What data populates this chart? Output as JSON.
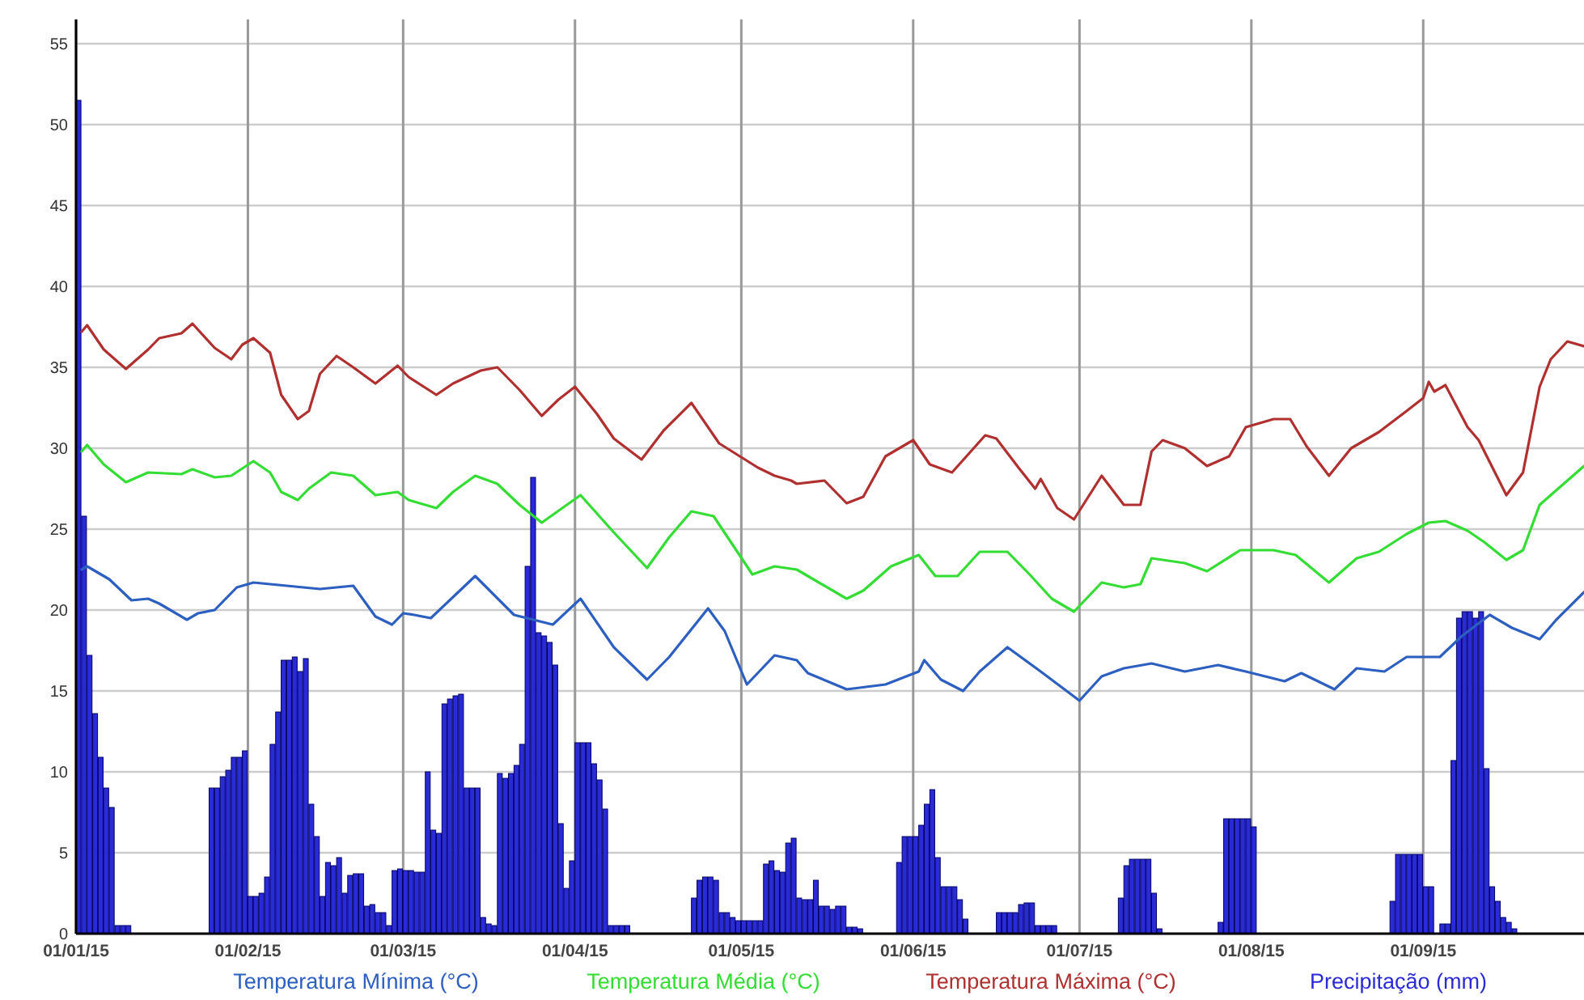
{
  "chart_data": {
    "type": "line",
    "xlim": [
      "2015-01-01",
      "2015-09-30"
    ],
    "xticks": [
      {
        "value": "2015-01-01",
        "label": "01/01/15"
      },
      {
        "value": "2015-02-01",
        "label": "01/02/15"
      },
      {
        "value": "2015-03-01",
        "label": "01/03/15"
      },
      {
        "value": "2015-04-01",
        "label": "01/04/15"
      },
      {
        "value": "2015-05-01",
        "label": "01/05/15"
      },
      {
        "value": "2015-06-01",
        "label": "01/06/15"
      },
      {
        "value": "2015-07-01",
        "label": "01/07/15"
      },
      {
        "value": "2015-08-01",
        "label": "01/08/15"
      },
      {
        "value": "2015-09-01",
        "label": "01/09/15"
      }
    ],
    "ylim": [
      0,
      56.5
    ],
    "yticks": [
      0,
      5,
      10,
      15,
      20,
      25,
      30,
      35,
      40,
      45,
      50,
      55
    ],
    "grid": true,
    "legend": "bottom",
    "marker": "none",
    "line_style": "solid",
    "series": [
      {
        "name": "Temperatura Mínima (°C)",
        "color": "#2c5fbf",
        "x": [
          "2015-01-02",
          "2015-01-03",
          "2015-01-07",
          "2015-01-11",
          "2015-01-14",
          "2015-01-16",
          "2015-01-21",
          "2015-01-23",
          "2015-01-26",
          "2015-01-30",
          "2015-02-02",
          "2015-02-08",
          "2015-02-14",
          "2015-02-20",
          "2015-02-24",
          "2015-02-27",
          "2015-03-01",
          "2015-03-03",
          "2015-03-06",
          "2015-03-14",
          "2015-03-21",
          "2015-03-28",
          "2015-04-02",
          "2015-04-08",
          "2015-04-14",
          "2015-04-18",
          "2015-04-25",
          "2015-04-28",
          "2015-05-02",
          "2015-05-07",
          "2015-05-11",
          "2015-05-13",
          "2015-05-20",
          "2015-05-27",
          "2015-06-02",
          "2015-06-03",
          "2015-06-06",
          "2015-06-10",
          "2015-06-13",
          "2015-06-18",
          "2015-06-24",
          "2015-07-01",
          "2015-07-05",
          "2015-07-09",
          "2015-07-14",
          "2015-07-20",
          "2015-07-26",
          "2015-07-31",
          "2015-08-07",
          "2015-08-10",
          "2015-08-16",
          "2015-08-20",
          "2015-08-25",
          "2015-08-29",
          "2015-09-04",
          "2015-09-08",
          "2015-09-13",
          "2015-09-17",
          "2015-09-22",
          "2015-09-25",
          "2015-09-30"
        ],
        "values": [
          22.5,
          22.7,
          21.9,
          20.6,
          20.7,
          20.4,
          19.4,
          19.8,
          20.0,
          21.4,
          21.7,
          21.5,
          21.3,
          21.5,
          19.6,
          19.1,
          19.8,
          19.7,
          19.5,
          22.1,
          19.7,
          19.1,
          20.7,
          17.7,
          15.7,
          17.1,
          20.1,
          18.7,
          15.4,
          17.2,
          16.9,
          16.1,
          15.1,
          15.4,
          16.2,
          16.9,
          15.7,
          15.0,
          16.2,
          17.7,
          16.2,
          14.4,
          15.9,
          16.4,
          16.7,
          16.2,
          16.6,
          16.2,
          15.6,
          16.1,
          15.1,
          16.4,
          16.2,
          17.1,
          17.1,
          18.4,
          19.7,
          18.9,
          18.2,
          19.4,
          21.1
        ]
      },
      {
        "name": "Temperatura Média (°C)",
        "color": "#33dd33",
        "x": [
          "2015-01-02",
          "2015-01-03",
          "2015-01-06",
          "2015-01-10",
          "2015-01-14",
          "2015-01-20",
          "2015-01-22",
          "2015-01-26",
          "2015-01-29",
          "2015-02-02",
          "2015-02-05",
          "2015-02-07",
          "2015-02-10",
          "2015-02-12",
          "2015-02-16",
          "2015-02-20",
          "2015-02-24",
          "2015-02-28",
          "2015-03-02",
          "2015-03-07",
          "2015-03-10",
          "2015-03-14",
          "2015-03-18",
          "2015-03-22",
          "2015-03-26",
          "2015-04-02",
          "2015-04-08",
          "2015-04-14",
          "2015-04-18",
          "2015-04-22",
          "2015-04-26",
          "2015-05-03",
          "2015-05-07",
          "2015-05-11",
          "2015-05-13",
          "2015-05-20",
          "2015-05-23",
          "2015-05-28",
          "2015-06-02",
          "2015-06-05",
          "2015-06-09",
          "2015-06-13",
          "2015-06-18",
          "2015-06-22",
          "2015-06-26",
          "2015-06-30",
          "2015-07-05",
          "2015-07-09",
          "2015-07-12",
          "2015-07-14",
          "2015-07-20",
          "2015-07-24",
          "2015-07-30",
          "2015-08-05",
          "2015-08-09",
          "2015-08-15",
          "2015-08-20",
          "2015-08-24",
          "2015-08-29",
          "2015-09-02",
          "2015-09-05",
          "2015-09-09",
          "2015-09-12",
          "2015-09-16",
          "2015-09-19",
          "2015-09-22",
          "2015-09-25",
          "2015-09-30"
        ],
        "values": [
          29.8,
          30.2,
          29.0,
          27.9,
          28.5,
          28.4,
          28.7,
          28.2,
          28.3,
          29.2,
          28.5,
          27.3,
          26.8,
          27.5,
          28.5,
          28.3,
          27.1,
          27.3,
          26.8,
          26.3,
          27.3,
          28.3,
          27.8,
          26.5,
          25.4,
          27.1,
          24.8,
          22.6,
          24.5,
          26.1,
          25.8,
          22.2,
          22.7,
          22.5,
          22.1,
          20.7,
          21.2,
          22.7,
          23.4,
          22.1,
          22.1,
          23.6,
          23.6,
          22.2,
          20.7,
          19.9,
          21.7,
          21.4,
          21.6,
          23.2,
          22.9,
          22.4,
          23.7,
          23.7,
          23.4,
          21.7,
          23.2,
          23.6,
          24.7,
          25.4,
          25.5,
          24.9,
          24.2,
          23.1,
          23.7,
          26.5,
          27.4,
          28.9
        ]
      },
      {
        "name": "Temperatura Máxima (°C)",
        "color": "#b03030",
        "x": [
          "2015-01-02",
          "2015-01-03",
          "2015-01-06",
          "2015-01-10",
          "2015-01-14",
          "2015-01-16",
          "2015-01-20",
          "2015-01-22",
          "2015-01-26",
          "2015-01-29",
          "2015-01-31",
          "2015-02-02",
          "2015-02-05",
          "2015-02-07",
          "2015-02-10",
          "2015-02-12",
          "2015-02-14",
          "2015-02-17",
          "2015-02-20",
          "2015-02-24",
          "2015-02-28",
          "2015-03-02",
          "2015-03-07",
          "2015-03-10",
          "2015-03-15",
          "2015-03-18",
          "2015-03-22",
          "2015-03-26",
          "2015-03-29",
          "2015-04-01",
          "2015-04-05",
          "2015-04-08",
          "2015-04-13",
          "2015-04-17",
          "2015-04-22",
          "2015-04-27",
          "2015-05-04",
          "2015-05-07",
          "2015-05-10",
          "2015-05-11",
          "2015-05-16",
          "2015-05-20",
          "2015-05-23",
          "2015-05-27",
          "2015-06-01",
          "2015-06-04",
          "2015-06-08",
          "2015-06-14",
          "2015-06-16",
          "2015-06-20",
          "2015-06-23",
          "2015-06-24",
          "2015-06-27",
          "2015-06-30",
          "2015-07-05",
          "2015-07-09",
          "2015-07-12",
          "2015-07-14",
          "2015-07-16",
          "2015-07-20",
          "2015-07-24",
          "2015-07-28",
          "2015-07-31",
          "2015-08-05",
          "2015-08-08",
          "2015-08-11",
          "2015-08-15",
          "2015-08-19",
          "2015-08-24",
          "2015-08-29",
          "2015-09-01",
          "2015-09-02",
          "2015-09-03",
          "2015-09-05",
          "2015-09-09",
          "2015-09-11",
          "2015-09-16",
          "2015-09-19",
          "2015-09-22",
          "2015-09-24",
          "2015-09-27",
          "2015-09-30"
        ],
        "values": [
          37.2,
          37.6,
          36.1,
          34.9,
          36.1,
          36.8,
          37.1,
          37.7,
          36.2,
          35.5,
          36.4,
          36.8,
          35.9,
          33.3,
          31.8,
          32.3,
          34.6,
          35.7,
          35.0,
          34.0,
          35.1,
          34.4,
          33.3,
          34.0,
          34.8,
          35.0,
          33.6,
          32.0,
          33.0,
          33.8,
          32.1,
          30.6,
          29.3,
          31.1,
          32.8,
          30.3,
          28.8,
          28.3,
          28.0,
          27.8,
          28.0,
          26.6,
          27.0,
          29.5,
          30.5,
          29.0,
          28.5,
          30.8,
          30.6,
          28.8,
          27.5,
          28.1,
          26.3,
          25.6,
          28.3,
          26.5,
          26.5,
          29.8,
          30.5,
          30.0,
          28.9,
          29.5,
          31.3,
          31.8,
          31.8,
          30.1,
          28.3,
          30.0,
          31.0,
          32.3,
          33.1,
          34.1,
          33.5,
          33.9,
          31.3,
          30.5,
          27.1,
          28.5,
          33.8,
          35.5,
          36.6,
          36.3
        ]
      },
      {
        "name": "Precipitação (mm)",
        "type": "bar",
        "color": "#2a2ad6",
        "x": [
          "2015-01-01",
          "2015-01-02",
          "2015-01-03",
          "2015-01-04",
          "2015-01-05",
          "2015-01-06",
          "2015-01-07",
          "2015-01-08",
          "2015-01-09",
          "2015-01-10",
          "2015-01-25",
          "2015-01-26",
          "2015-01-27",
          "2015-01-28",
          "2015-01-29",
          "2015-01-30",
          "2015-01-31",
          "2015-02-01",
          "2015-02-02",
          "2015-02-03",
          "2015-02-04",
          "2015-02-05",
          "2015-02-06",
          "2015-02-07",
          "2015-02-08",
          "2015-02-09",
          "2015-02-10",
          "2015-02-11",
          "2015-02-12",
          "2015-02-13",
          "2015-02-14",
          "2015-02-15",
          "2015-02-16",
          "2015-02-17",
          "2015-02-18",
          "2015-02-19",
          "2015-02-20",
          "2015-02-21",
          "2015-02-22",
          "2015-02-23",
          "2015-02-24",
          "2015-02-25",
          "2015-02-26",
          "2015-02-27",
          "2015-02-28",
          "2015-03-01",
          "2015-03-02",
          "2015-03-03",
          "2015-03-04",
          "2015-03-05",
          "2015-03-06",
          "2015-03-07",
          "2015-03-08",
          "2015-03-09",
          "2015-03-10",
          "2015-03-11",
          "2015-03-12",
          "2015-03-13",
          "2015-03-14",
          "2015-03-15",
          "2015-03-16",
          "2015-03-17",
          "2015-03-18",
          "2015-03-19",
          "2015-03-20",
          "2015-03-21",
          "2015-03-22",
          "2015-03-23",
          "2015-03-24",
          "2015-03-25",
          "2015-03-26",
          "2015-03-27",
          "2015-03-28",
          "2015-03-29",
          "2015-03-30",
          "2015-03-31",
          "2015-04-01",
          "2015-04-02",
          "2015-04-03",
          "2015-04-04",
          "2015-04-05",
          "2015-04-06",
          "2015-04-07",
          "2015-04-08",
          "2015-04-09",
          "2015-04-10",
          "2015-04-22",
          "2015-04-23",
          "2015-04-24",
          "2015-04-25",
          "2015-04-26",
          "2015-04-27",
          "2015-04-28",
          "2015-04-29",
          "2015-04-30",
          "2015-05-01",
          "2015-05-02",
          "2015-05-03",
          "2015-05-04",
          "2015-05-05",
          "2015-05-06",
          "2015-05-07",
          "2015-05-08",
          "2015-05-09",
          "2015-05-10",
          "2015-05-11",
          "2015-05-12",
          "2015-05-13",
          "2015-05-14",
          "2015-05-15",
          "2015-05-16",
          "2015-05-17",
          "2015-05-18",
          "2015-05-19",
          "2015-05-20",
          "2015-05-21",
          "2015-05-22",
          "2015-05-29",
          "2015-05-30",
          "2015-05-31",
          "2015-06-01",
          "2015-06-02",
          "2015-06-03",
          "2015-06-04",
          "2015-06-05",
          "2015-06-06",
          "2015-06-07",
          "2015-06-08",
          "2015-06-09",
          "2015-06-10",
          "2015-06-16",
          "2015-06-17",
          "2015-06-18",
          "2015-06-19",
          "2015-06-20",
          "2015-06-21",
          "2015-06-22",
          "2015-06-23",
          "2015-06-24",
          "2015-06-25",
          "2015-06-26",
          "2015-07-08",
          "2015-07-09",
          "2015-07-10",
          "2015-07-11",
          "2015-07-12",
          "2015-07-13",
          "2015-07-14",
          "2015-07-15",
          "2015-07-26",
          "2015-07-27",
          "2015-07-28",
          "2015-07-29",
          "2015-07-30",
          "2015-07-31",
          "2015-08-01",
          "2015-08-26",
          "2015-08-27",
          "2015-08-28",
          "2015-08-29",
          "2015-08-30",
          "2015-08-31",
          "2015-09-01",
          "2015-09-02",
          "2015-09-04",
          "2015-09-05",
          "2015-09-06",
          "2015-09-07",
          "2015-09-08",
          "2015-09-09",
          "2015-09-10",
          "2015-09-11",
          "2015-09-12",
          "2015-09-13",
          "2015-09-14",
          "2015-09-15",
          "2015-09-16",
          "2015-09-17"
        ],
        "values": [
          51.5,
          25.8,
          17.2,
          13.6,
          10.9,
          9.0,
          7.8,
          0.5,
          0.5,
          0.5,
          9.0,
          9.0,
          9.7,
          10.1,
          10.9,
          10.9,
          11.3,
          2.3,
          2.3,
          2.5,
          3.5,
          11.7,
          13.7,
          16.9,
          16.9,
          17.1,
          16.2,
          17.0,
          8.0,
          6.0,
          2.3,
          4.4,
          4.2,
          4.7,
          2.5,
          3.6,
          3.7,
          3.7,
          1.7,
          1.8,
          1.3,
          1.3,
          0.5,
          3.9,
          4.0,
          3.9,
          3.9,
          3.8,
          3.8,
          10.0,
          6.4,
          6.2,
          14.2,
          14.5,
          14.7,
          14.8,
          9.0,
          9.0,
          9.0,
          1.0,
          0.6,
          0.5,
          9.9,
          9.6,
          9.9,
          10.4,
          11.7,
          22.7,
          28.2,
          18.6,
          18.4,
          18.0,
          16.6,
          6.8,
          2.8,
          4.5,
          11.8,
          11.8,
          11.8,
          10.5,
          9.5,
          7.7,
          0.5,
          0.5,
          0.5,
          0.5,
          2.2,
          3.3,
          3.5,
          3.5,
          3.3,
          1.3,
          1.3,
          1.0,
          0.8,
          0.8,
          0.8,
          0.8,
          0.8,
          4.3,
          4.5,
          3.9,
          3.8,
          5.6,
          5.9,
          2.2,
          2.1,
          2.1,
          3.3,
          1.7,
          1.7,
          1.5,
          1.7,
          1.7,
          0.4,
          0.4,
          0.3,
          4.4,
          6.0,
          6.0,
          6.0,
          6.7,
          8.0,
          8.9,
          4.7,
          2.9,
          2.9,
          2.9,
          2.1,
          0.9,
          1.3,
          1.3,
          1.3,
          1.3,
          1.8,
          1.9,
          1.9,
          0.5,
          0.5,
          0.5,
          0.5,
          2.2,
          4.2,
          4.6,
          4.6,
          4.6,
          4.6,
          2.5,
          0.3,
          0.7,
          7.1,
          7.1,
          7.1,
          7.1,
          7.1,
          6.6,
          2.0,
          4.9,
          4.9,
          4.9,
          4.9,
          4.9,
          2.9,
          2.9,
          0.6,
          0.6,
          10.7,
          19.5,
          19.9,
          19.9,
          19.5,
          19.9,
          10.2,
          2.9,
          2.0,
          1.0,
          0.7,
          0.3
        ]
      }
    ]
  }
}
